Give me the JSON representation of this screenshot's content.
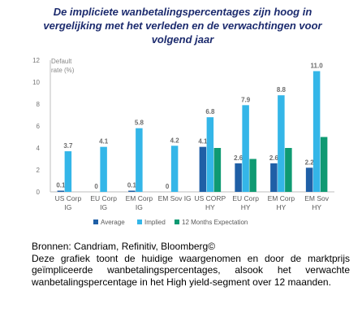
{
  "title_lines": [
    "De impliciete wanbetalingspercentages zijn hoog in",
    "vergelijking met het verleden en de verwachtingen voor",
    "volgend jaar"
  ],
  "chart_data": {
    "type": "bar",
    "ylabel": "Default rate (%)",
    "ylim": [
      0,
      12
    ],
    "yticks": [
      0,
      2,
      4,
      6,
      8,
      10,
      12
    ],
    "grid": false,
    "legend_position": "bottom",
    "categories": [
      [
        "US Corp",
        "IG"
      ],
      [
        "EU Corp",
        "IG"
      ],
      [
        "EM Corp",
        "IG"
      ],
      [
        "EM Sov IG",
        ""
      ],
      [
        "US CORP",
        "HY"
      ],
      [
        "EU Corp",
        "HY"
      ],
      [
        "EM Corp",
        "HY"
      ],
      [
        "EM Sov",
        "HY"
      ]
    ],
    "series": [
      {
        "name": "Average",
        "color": "#1f5fa6",
        "values": [
          0.1,
          0,
          0.1,
          0,
          4.1,
          2.6,
          2.6,
          2.2
        ],
        "labels": [
          "0.1",
          "0",
          "0.1",
          "0",
          "4.1",
          "2.6",
          "2.6",
          "2.2"
        ]
      },
      {
        "name": "Implied",
        "color": "#34b6e8",
        "values": [
          3.7,
          4.1,
          5.8,
          4.2,
          6.8,
          7.9,
          8.8,
          11.0
        ],
        "labels": [
          "3.7",
          "4.1",
          "5.8",
          "4.2",
          "6.8",
          "7.9",
          "8.8",
          "11.0"
        ]
      },
      {
        "name": "12 Months Expectation",
        "color": "#0f9a72",
        "values": [
          null,
          null,
          null,
          null,
          4.0,
          3.0,
          4.0,
          5.0
        ],
        "labels": [
          null,
          null,
          null,
          null,
          null,
          null,
          null,
          null
        ]
      }
    ]
  },
  "source": {
    "line1": "Bronnen: Candriam, Refinitiv, Bloomberg©",
    "description": "Deze grafiek toont de huidige waargenomen en door de marktprijs geïmpliceerde wanbetalingspercentages, alsook het verwachte wanbetalingspercentage in het High yield-segment over 12 maanden."
  }
}
